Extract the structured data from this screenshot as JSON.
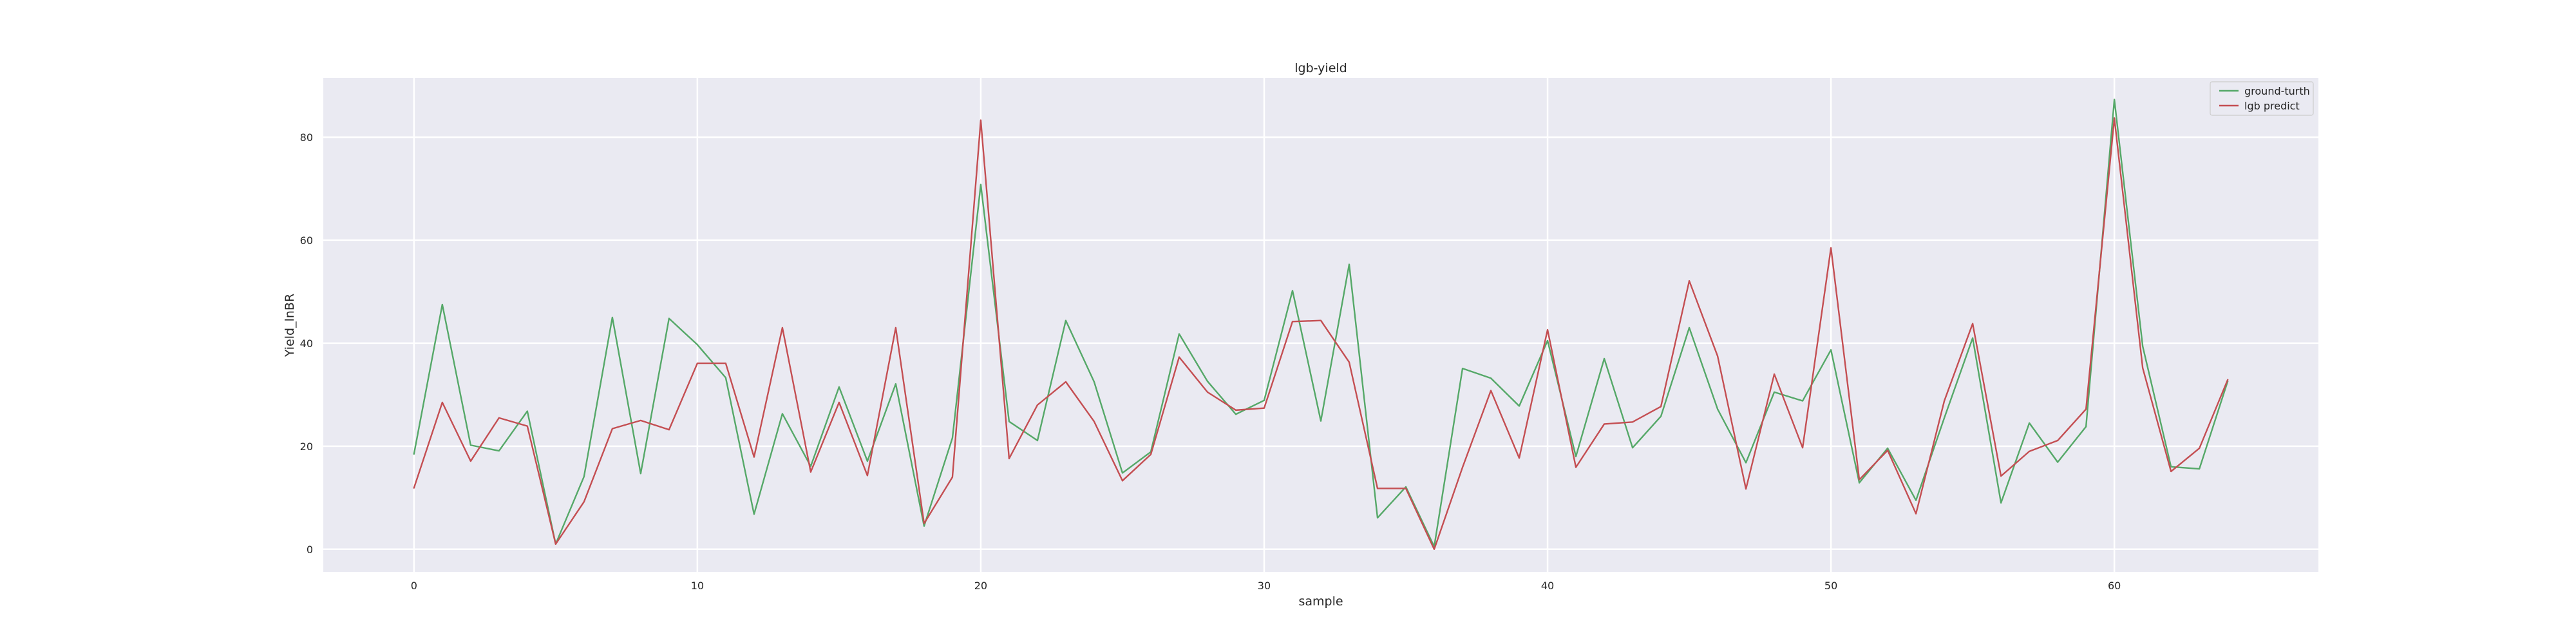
{
  "chart_data": {
    "type": "line",
    "title": "lgb-yield",
    "xlabel": "sample",
    "ylabel": "Yield_lnBR",
    "xlim": [
      -3.2,
      67.2
    ],
    "ylim": [
      -4.4,
      91.5
    ],
    "xticks": [
      0,
      10,
      20,
      30,
      40,
      50,
      60
    ],
    "yticks": [
      0,
      20,
      40,
      60,
      80
    ],
    "grid": true,
    "legend_position": "top-right",
    "x": [
      0,
      1,
      2,
      3,
      4,
      5,
      6,
      7,
      8,
      9,
      10,
      11,
      12,
      13,
      14,
      15,
      16,
      17,
      18,
      19,
      20,
      21,
      22,
      23,
      24,
      25,
      26,
      27,
      28,
      29,
      30,
      31,
      32,
      33,
      34,
      35,
      36,
      37,
      38,
      39,
      40,
      41,
      42,
      43,
      44,
      45,
      46,
      47,
      48,
      49,
      50,
      51,
      52,
      53,
      54,
      55,
      56,
      57,
      58,
      59,
      60,
      61,
      62,
      63,
      64
    ],
    "series": [
      {
        "name": "ground-turth",
        "color": "#55a868",
        "values": [
          18.5,
          47.5,
          20.2,
          19.1,
          26.8,
          1.0,
          14.1,
          45.0,
          14.7,
          44.8,
          39.7,
          33.3,
          6.8,
          26.3,
          16.1,
          31.5,
          17.1,
          32.1,
          4.5,
          21.6,
          70.8,
          24.8,
          21.1,
          44.4,
          32.5,
          14.8,
          18.9,
          41.8,
          32.6,
          26.2,
          28.9,
          50.2,
          24.9,
          55.3,
          6.1,
          12.1,
          0.5,
          35.1,
          33.2,
          27.8,
          40.5,
          18.0,
          37.0,
          19.7,
          25.8,
          43.0,
          27.2,
          16.8,
          30.5,
          28.8,
          38.7,
          12.9,
          19.6,
          9.5,
          25.5,
          41.0,
          9.0,
          24.5,
          16.9,
          23.8,
          87.3,
          39.4,
          16.0,
          15.6,
          32.6
        ]
      },
      {
        "name": "lgb predict",
        "color": "#c44e52",
        "values": [
          11.9,
          28.5,
          17.1,
          25.5,
          23.9,
          1.0,
          9.2,
          23.4,
          25.0,
          23.2,
          36.1,
          36.1,
          17.9,
          43.0,
          15.0,
          28.5,
          14.3,
          43.0,
          5.0,
          14.0,
          83.3,
          17.6,
          28.0,
          32.5,
          24.8,
          13.3,
          18.4,
          37.3,
          30.5,
          27.0,
          27.4,
          44.2,
          44.4,
          36.3,
          11.8,
          11.8,
          0.0,
          15.9,
          30.8,
          17.7,
          42.6,
          15.9,
          24.3,
          24.7,
          27.7,
          52.1,
          37.5,
          11.7,
          34.0,
          19.7,
          58.5,
          13.5,
          19.2,
          6.9,
          28.8,
          43.8,
          14.2,
          19.0,
          21.1,
          27.2,
          83.7,
          35.2,
          15.1,
          19.6,
          32.9
        ]
      }
    ]
  }
}
